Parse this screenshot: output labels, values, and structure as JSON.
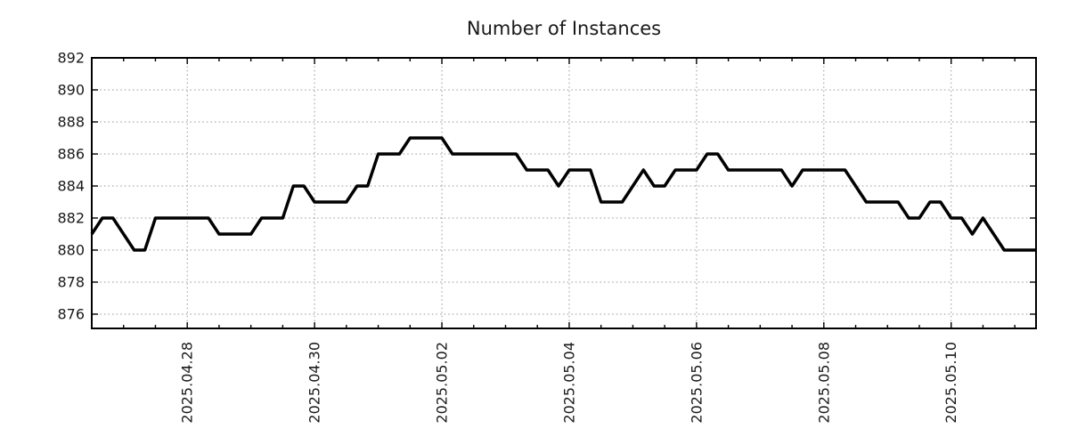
{
  "page": {
    "background": "#ffffff"
  },
  "chart_data": {
    "type": "line",
    "title": "Number of Instances",
    "series_name": "instances",
    "x_start": "2025.04.26 12:00",
    "x_step_hours": 4,
    "values": [
      881,
      882,
      882,
      881,
      880,
      880,
      882,
      882,
      882,
      882,
      882,
      882,
      881,
      881,
      881,
      881,
      882,
      882,
      882,
      884,
      884,
      883,
      883,
      883,
      883,
      884,
      884,
      886,
      886,
      886,
      887,
      887,
      887,
      887,
      886,
      886,
      886,
      886,
      886,
      886,
      886,
      885,
      885,
      885,
      884,
      885,
      885,
      885,
      883,
      883,
      883,
      884,
      885,
      884,
      884,
      885,
      885,
      885,
      886,
      886,
      885,
      885,
      885,
      885,
      885,
      885,
      884,
      885,
      885,
      885,
      885,
      885,
      884,
      883,
      883,
      883,
      883,
      882,
      882,
      883,
      883,
      882,
      882,
      881,
      882,
      881,
      880,
      880,
      880,
      880
    ],
    "x_tick_indices": [
      9,
      21,
      33,
      45,
      57,
      69,
      81
    ],
    "x_tick_labels": [
      "2025.04.28",
      "2025.04.30",
      "2025.05.02",
      "2025.05.04",
      "2025.05.06",
      "2025.05.08",
      "2025.05.10"
    ],
    "x_minor_tick_every_indices": 3,
    "y_ticks": [
      876,
      878,
      880,
      882,
      884,
      886,
      888,
      890,
      892
    ],
    "y_tick_labels": [
      "876",
      "878",
      "880",
      "882",
      "884",
      "886",
      "888",
      "890",
      "892"
    ],
    "ylim": [
      875.11,
      892
    ],
    "grid": true,
    "legend": "none",
    "styles": {
      "line_color": "#000000",
      "grid_color": "#9c9c9c",
      "axis_color": "#000000",
      "text_color": "#1a1a1a",
      "background": "#ffffff"
    }
  }
}
